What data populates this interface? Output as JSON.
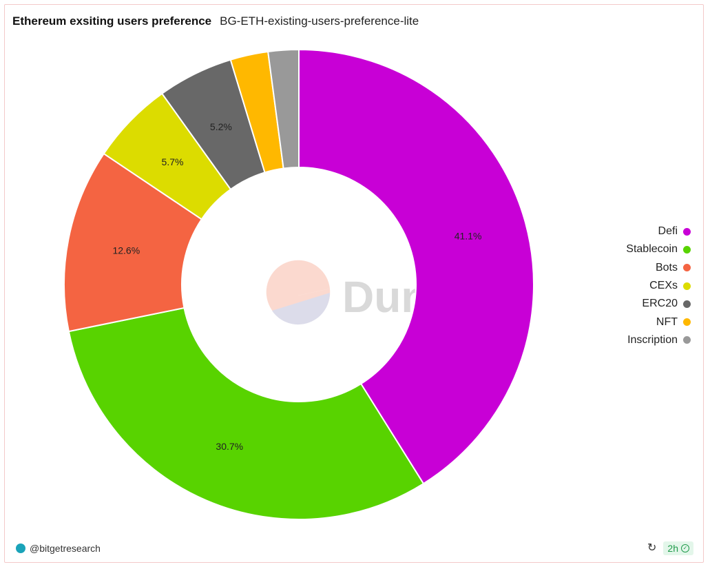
{
  "header": {
    "title": "Ethereum exsiting users preference",
    "query_name": "BG-ETH-existing-users-preference-lite"
  },
  "chart_data": {
    "type": "pie",
    "variant": "donut",
    "categories": [
      "Defi",
      "Stablecoin",
      "Bots",
      "CEXs",
      "ERC20",
      "NFT",
      "Inscription"
    ],
    "values": [
      41.1,
      30.7,
      12.6,
      5.7,
      5.2,
      2.6,
      2.1
    ],
    "data_labels": [
      "41.1%",
      "30.7%",
      "12.6%",
      "5.7%",
      "5.2%",
      "",
      ""
    ],
    "colors": [
      "#c800d6",
      "#58d300",
      "#f46442",
      "#dcdc00",
      "#686868",
      "#ffb800",
      "#999999"
    ],
    "legend_position": "right"
  },
  "watermark": {
    "text": "Dune"
  },
  "footer": {
    "author": "@bitgetresearch",
    "refresh_icon": "refresh-icon",
    "age": "2h",
    "status_icon": "check-circle-icon"
  }
}
